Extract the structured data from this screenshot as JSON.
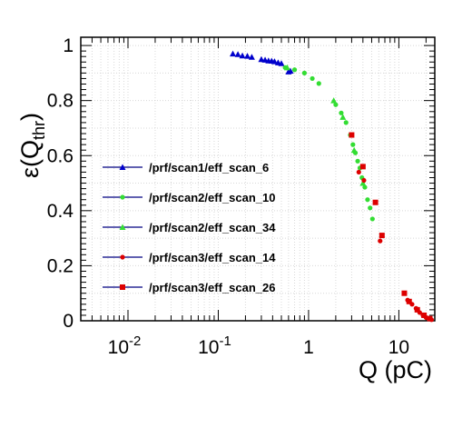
{
  "chart_data": {
    "type": "scatter",
    "title": "",
    "xlabel": "Q (pC)",
    "ylabel_main": "ε(Q",
    "ylabel_sub": "thr",
    "ylabel_close": ")",
    "xscale": "log",
    "xlim": [
      0.003,
      25
    ],
    "ylim": [
      0,
      1.03
    ],
    "grid": "dotted",
    "legend_position": "middle-left",
    "x_ticks": [
      {
        "value": 0.01,
        "base": "10",
        "exp": "-2"
      },
      {
        "value": 0.1,
        "base": "10",
        "exp": "-1"
      },
      {
        "value": 1,
        "base": "1",
        "exp": ""
      },
      {
        "value": 10,
        "base": "10",
        "exp": ""
      }
    ],
    "y_ticks": [
      {
        "value": 0,
        "label": "0"
      },
      {
        "value": 0.2,
        "label": "0.2"
      },
      {
        "value": 0.4,
        "label": "0.4"
      },
      {
        "value": 0.6,
        "label": "0.6"
      },
      {
        "value": 0.8,
        "label": "0.8"
      },
      {
        "value": 1,
        "label": "1"
      }
    ],
    "series": [
      {
        "name": "/prf/scan1/eff_scan_6",
        "color": "#0000cc",
        "marker": "triangle",
        "points": [
          [
            0.145,
            0.97
          ],
          [
            0.165,
            0.968
          ],
          [
            0.185,
            0.963
          ],
          [
            0.21,
            0.962
          ],
          [
            0.235,
            0.958
          ],
          [
            0.3,
            0.95
          ],
          [
            0.33,
            0.948
          ],
          [
            0.36,
            0.945
          ],
          [
            0.39,
            0.944
          ],
          [
            0.42,
            0.942
          ],
          [
            0.46,
            0.938
          ],
          [
            0.5,
            0.935
          ],
          [
            0.6,
            0.905
          ],
          [
            0.63,
            0.908
          ]
        ]
      },
      {
        "name": "/prf/scan2/eff_scan_10",
        "color": "#33dd33",
        "marker": "circle",
        "points": [
          [
            0.55,
            0.92
          ],
          [
            0.7,
            0.912
          ],
          [
            0.9,
            0.9
          ],
          [
            1.1,
            0.88
          ],
          [
            1.3,
            0.862
          ],
          [
            2.0,
            0.785
          ],
          [
            2.3,
            0.755
          ],
          [
            2.6,
            0.72
          ],
          [
            2.9,
            0.675
          ],
          [
            3.1,
            0.64
          ],
          [
            3.3,
            0.61
          ],
          [
            3.5,
            0.58
          ],
          [
            3.7,
            0.555
          ],
          [
            3.9,
            0.52
          ],
          [
            4.2,
            0.485
          ],
          [
            4.5,
            0.44
          ],
          [
            4.8,
            0.41
          ],
          [
            5.1,
            0.37
          ]
        ]
      },
      {
        "name": "/prf/scan2/eff_scan_34",
        "color": "#33dd33",
        "marker": "triangle",
        "points": [
          [
            0.58,
            0.92
          ],
          [
            1.9,
            0.8
          ],
          [
            2.4,
            0.74
          ],
          [
            3.2,
            0.62
          ],
          [
            4.0,
            0.5
          ]
        ]
      },
      {
        "name": "/prf/scan3/eff_scan_14",
        "color": "#dd0000",
        "marker": "circle",
        "points": [
          [
            3.6,
            0.54
          ],
          [
            4.1,
            0.51
          ],
          [
            6.2,
            0.29
          ],
          [
            12.5,
            0.075
          ],
          [
            14.0,
            0.06
          ],
          [
            15.5,
            0.045
          ],
          [
            17.0,
            0.03
          ],
          [
            18.5,
            0.02
          ],
          [
            20.0,
            0.012
          ],
          [
            21.5,
            0.008
          ],
          [
            23.0,
            0.004
          ]
        ]
      },
      {
        "name": "/prf/scan3/eff_scan_26",
        "color": "#dd0000",
        "marker": "square",
        "points": [
          [
            3.0,
            0.675
          ],
          [
            4.0,
            0.56
          ],
          [
            5.5,
            0.43
          ],
          [
            6.5,
            0.31
          ],
          [
            11.5,
            0.1
          ],
          [
            13.0,
            0.07
          ],
          [
            16.0,
            0.04
          ],
          [
            19.0,
            0.02
          ],
          [
            22.0,
            0.008
          ]
        ]
      }
    ]
  }
}
